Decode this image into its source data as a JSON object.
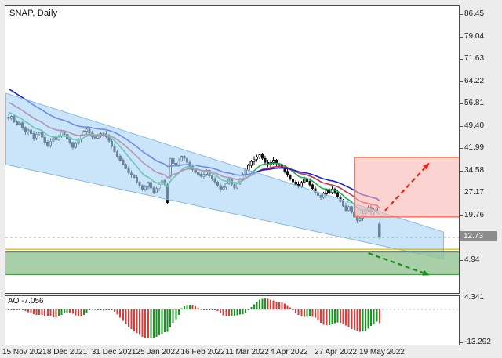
{
  "window": {
    "title": "SNAP, Daily"
  },
  "price_tag": {
    "value": "12.73"
  },
  "chart_data": {
    "type": "candlestick",
    "symbol": "SNAP",
    "timeframe": "Daily",
    "title": "SNAP, Daily",
    "legend_position": "none",
    "grid": false,
    "y_axis": {
      "ticks": [
        86.45,
        79.04,
        71.63,
        64.22,
        56.81,
        49.4,
        41.99,
        34.58,
        27.17,
        19.76,
        4.94
      ],
      "current_price": 12.73
    },
    "x_axis": {
      "labels": [
        {
          "text": "15 Nov 2021",
          "bar": 0
        },
        {
          "text": "8 Dec 2021",
          "bar": 16
        },
        {
          "text": "31 Dec 2021",
          "bar": 32
        },
        {
          "text": "25 Jan 2022",
          "bar": 48
        },
        {
          "text": "16 Feb 2022",
          "bar": 64
        },
        {
          "text": "11 Mar 2022",
          "bar": 80
        },
        {
          "text": "4 Apr 2022",
          "bar": 96
        },
        {
          "text": "27 Apr 2022",
          "bar": 112
        },
        {
          "text": "19 May 2022",
          "bar": 128
        }
      ]
    },
    "candles": {
      "wicks_approximated": true,
      "first_open": 52.6,
      "gap_opens": {
        "58": 33.0,
        "133": 17.2
      },
      "closes": [
        52.1,
        52.8,
        51.0,
        50.2,
        50.6,
        49.1,
        47.6,
        48.3,
        47.1,
        45.6,
        46.9,
        47.4,
        45.9,
        44.3,
        43.1,
        44.6,
        45.9,
        45.0,
        46.3,
        47.6,
        46.9,
        45.3,
        44.1,
        42.6,
        43.9,
        45.1,
        46.6,
        47.9,
        48.6,
        47.3,
        46.1,
        45.6,
        46.4,
        47.1,
        47.0,
        46.1,
        44.6,
        42.9,
        41.1,
        39.6,
        38.3,
        36.9,
        35.6,
        34.1,
        33.3,
        32.6,
        31.1,
        29.9,
        28.6,
        29.6,
        30.9,
        29.1,
        27.6,
        28.9,
        30.3,
        31.6,
        30.3,
        24.3,
        38.9,
        37.3,
        36.6,
        38.1,
        39.6,
        38.9,
        37.6,
        36.3,
        35.1,
        34.3,
        33.6,
        32.9,
        33.6,
        34.9,
        33.1,
        32.1,
        31.1,
        29.9,
        28.6,
        29.3,
        30.6,
        31.9,
        30.3,
        29.1,
        30.6,
        32.1,
        33.6,
        35.1,
        36.6,
        37.9,
        38.6,
        39.3,
        40.1,
        38.9,
        37.6,
        36.9,
        37.6,
        38.3,
        37.1,
        36.6,
        35.9,
        34.6,
        33.3,
        32.1,
        31.1,
        30.3,
        29.6,
        30.9,
        32.1,
        31.3,
        30.1,
        28.9,
        27.6,
        26.6,
        25.9,
        27.1,
        28.3,
        27.6,
        28.7,
        27.6,
        26.1,
        24.6,
        23.1,
        21.6,
        22.9,
        21.1,
        19.6,
        18.3,
        19.1,
        20.6,
        21.9,
        22.6,
        21.1,
        21.7,
        22.5,
        12.73
      ],
      "bull_color": "#ffffff",
      "bear_color": "#111111",
      "outline_color": "#111111"
    },
    "moving_averages": [
      {
        "name": "fast-ma",
        "period": 10,
        "init": 54.5,
        "color": "#18b24a"
      },
      {
        "name": "medium-ma",
        "period": 20,
        "init": 58.0,
        "color": "#c83250"
      },
      {
        "name": "slow-ma",
        "period": 34,
        "init": 62.5,
        "color": "#1f1fd0"
      }
    ],
    "ao": {
      "label": "AO -7.056",
      "value": -7.056,
      "ticks": [
        4.341,
        -13.292
      ],
      "colors": {
        "up": "#0f9d1a",
        "down": "#e53935"
      }
    },
    "drawings": {
      "channel": {
        "shape": "descending-channel",
        "points_bar_price": [
          [
            -1,
            60.5
          ],
          [
            156,
            14.5
          ],
          [
            156,
            5.5
          ],
          [
            -1,
            36.9
          ]
        ],
        "fill": "#a7d3f5",
        "opacity": 0.6,
        "border": "#8abbe0"
      },
      "resistance_zone": {
        "bar_range": [
          124,
          164
        ],
        "price_range": [
          19.5,
          39.2
        ],
        "fill": "#f8b7b4",
        "opacity": 0.6,
        "border": "#ff6a45"
      },
      "support_zone": {
        "bar_range": [
          -2,
          164
        ],
        "price_range": [
          0.4,
          7.9
        ],
        "fill": "#92c392",
        "opacity": 0.8,
        "border": "#4c9a4c"
      },
      "gold_line": {
        "price": 8.8,
        "color": "#d4b800"
      },
      "price_line": {
        "price": 12.73,
        "color": "#aaaaaa"
      },
      "arrow_up": {
        "from": [
          135,
          21.6
        ],
        "to": [
          151,
          37.5
        ],
        "color": "#e8281e"
      },
      "arrow_down": {
        "from": [
          129,
          7.5
        ],
        "to": [
          151,
          0.2
        ],
        "color": "#1c8c1c"
      }
    }
  }
}
